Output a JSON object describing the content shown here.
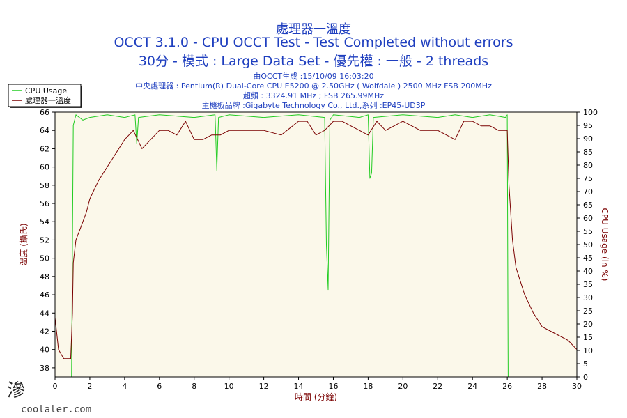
{
  "header": {
    "title_1": "處理器一溫度",
    "title_2": "OCCT 3.1.0 - CPU OCCT Test - Test Completed without errors",
    "title_3": "30分 - 模式 : Large Data Set - 優先權 : 一般 - 2 threads",
    "info_1": "由OCCT生成 :15/10/09 16:03:20",
    "info_2": "中央處理器 : Pentium(R) Dual-Core CPU E5200 @ 2.50GHz ( Wolfdale ) 2500 MHz FSB 200MHz",
    "info_3": "超頻 : 3324.91 MHz ; FSB 265.99MHz",
    "info_4": "主機板品牌 :Gigabyte Technology Co., Ltd.,系列 :EP45-UD3P"
  },
  "watermark": {
    "glyph": "滲",
    "text": "coolaler.com"
  },
  "colors": {
    "cpu_usage": "#22cc22",
    "temperature": "#7a0000",
    "plot_bg": "#fbf8ea",
    "frame": "#000000"
  },
  "chart_data": {
    "type": "line",
    "xlabel": "時間 (分鐘)",
    "ylabel_left": "溫度 (攝氏)",
    "ylabel_right": "CPU Usage (in %)",
    "xlim": [
      0,
      30
    ],
    "ylim_left": [
      37,
      66
    ],
    "ylim_right": [
      0,
      100
    ],
    "x_ticks": [
      "0",
      "2",
      "4",
      "6",
      "8",
      "10",
      "12",
      "14",
      "16",
      "18",
      "20",
      "22",
      "24",
      "26",
      "28",
      "30"
    ],
    "y_left_ticks": [
      "38",
      "40",
      "42",
      "44",
      "46",
      "48",
      "50",
      "52",
      "54",
      "56",
      "58",
      "60",
      "62",
      "64",
      "66"
    ],
    "y_right_ticks": [
      "0",
      "5",
      "10",
      "15",
      "20",
      "25",
      "30",
      "35",
      "40",
      "45",
      "50",
      "55",
      "60",
      "65",
      "70",
      "75",
      "80",
      "85",
      "90",
      "95",
      "100"
    ],
    "legend_position": "top-left",
    "grid": false,
    "series": [
      {
        "name": "CPU Usage",
        "axis": "right",
        "x": [
          0,
          0.95,
          1.0,
          1.05,
          1.2,
          1.6,
          2.0,
          3.0,
          4.0,
          4.6,
          4.7,
          4.8,
          6.0,
          8.0,
          9.2,
          9.3,
          9.4,
          10.0,
          12.0,
          14.0,
          15.5,
          15.6,
          15.7,
          15.8,
          16.0,
          17.5,
          18.0,
          18.1,
          18.2,
          18.3,
          20.0,
          22.0,
          23.0,
          24.0,
          25.0,
          25.9,
          26.0,
          26.05,
          30
        ],
        "y": [
          0,
          0,
          50,
          95,
          99,
          97,
          98,
          99,
          98,
          99,
          88,
          98,
          99,
          98,
          99,
          78,
          98,
          99,
          98,
          99,
          98,
          50,
          33,
          97,
          99,
          98,
          99,
          75,
          77,
          98,
          99,
          98,
          99,
          98,
          99,
          98,
          99,
          0,
          0
        ]
      },
      {
        "name": "處理器一溫度",
        "axis": "left",
        "x": [
          0,
          0.2,
          0.5,
          0.9,
          1.0,
          1.05,
          1.2,
          1.5,
          1.8,
          2.0,
          2.5,
          3.0,
          3.5,
          4.0,
          4.5,
          5.0,
          5.5,
          6.0,
          6.5,
          7.0,
          7.5,
          8.0,
          8.5,
          9.0,
          9.5,
          10.0,
          11.0,
          12.0,
          13.0,
          14.0,
          14.5,
          15.0,
          15.5,
          16.0,
          16.5,
          17.0,
          17.5,
          18.0,
          18.5,
          19.0,
          20.0,
          21.0,
          22.0,
          23.0,
          23.5,
          24.0,
          24.5,
          25.0,
          25.5,
          26.0,
          26.1,
          26.3,
          26.5,
          27.0,
          27.5,
          28.0,
          28.5,
          29.0,
          29.5,
          30.0
        ],
        "y": [
          43.5,
          40,
          39,
          39,
          44,
          49.5,
          52,
          53.5,
          55,
          56.5,
          58.5,
          60,
          61.5,
          63,
          64,
          62,
          63,
          64,
          64,
          63.5,
          65,
          63,
          63,
          63.5,
          63.5,
          64,
          64,
          64,
          63.5,
          65,
          65,
          63.5,
          64,
          65,
          65,
          64.5,
          64,
          63.5,
          65,
          64,
          65,
          64,
          64,
          63,
          65,
          65,
          64.5,
          64.5,
          64,
          64,
          58,
          52,
          49,
          46,
          44,
          42.5,
          42,
          41.5,
          41,
          40
        ]
      }
    ]
  }
}
